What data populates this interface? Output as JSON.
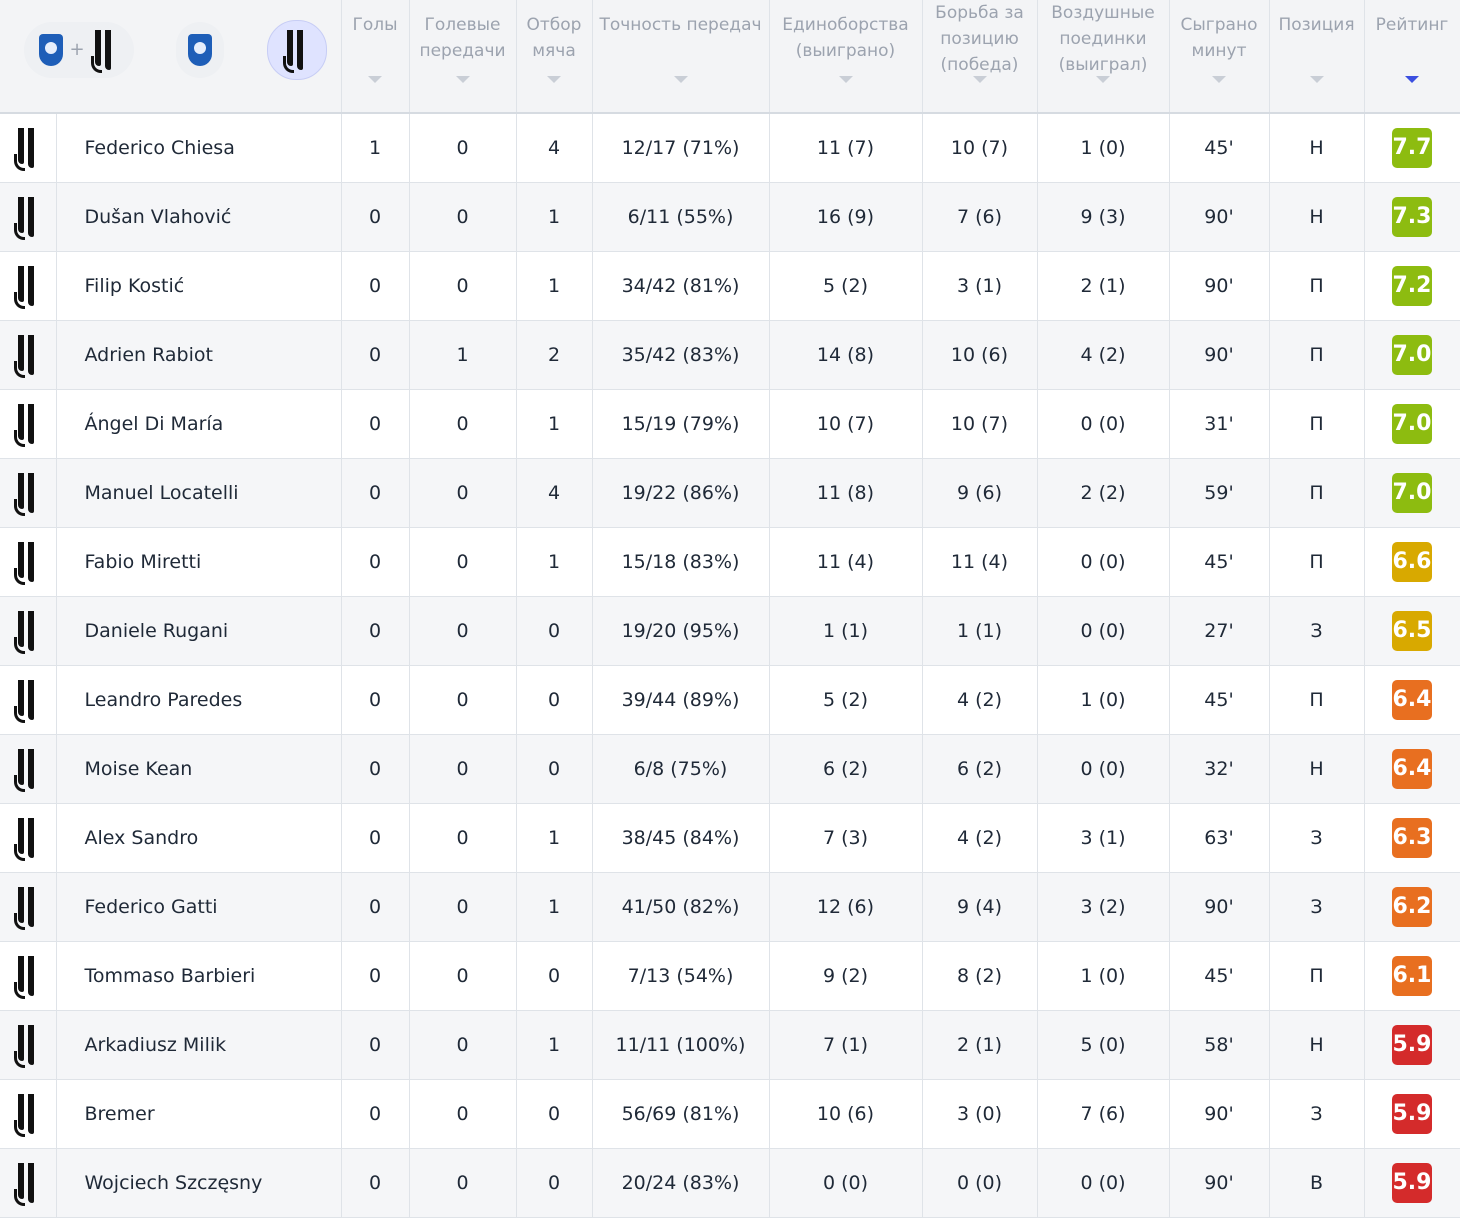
{
  "header": {
    "team_selector": {
      "combined_icons": [
        "empoli-crest-icon",
        "juventus-crest-icon"
      ],
      "plus": "+",
      "home_icon": "empoli-crest-icon",
      "away_icon": "juventus-crest-icon",
      "selected": "away"
    },
    "columns": [
      {
        "key": "goals",
        "label": "Голы"
      },
      {
        "key": "assists",
        "label": "Голевые передачи"
      },
      {
        "key": "tackles",
        "label": "Отбор мяча"
      },
      {
        "key": "pass_accuracy",
        "label": "Точность передач"
      },
      {
        "key": "duels",
        "label": "Единоборства (выиграно)"
      },
      {
        "key": "ground_duels",
        "label": "Борьба за позицию (победа)"
      },
      {
        "key": "aerial_duels",
        "label": "Воздушные поединки (выиграл)"
      },
      {
        "key": "minutes",
        "label": "Сыграно минут"
      },
      {
        "key": "position",
        "label": "Позиция"
      },
      {
        "key": "rating",
        "label": "Рейтинг"
      }
    ],
    "sorted_by": "rating",
    "colors": {
      "sort_active": "#3b4fe0",
      "sort_inactive": "#c9ced6"
    }
  },
  "rating_colors": {
    "green": "#8dbc10",
    "yellow": "#d8a900",
    "orange": "#e86f20",
    "red": "#d42b2b"
  },
  "players": [
    {
      "team_icon": "juventus-crest-icon",
      "name": "Federico Chiesa",
      "goals": "1",
      "assists": "0",
      "tackles": "4",
      "pass_accuracy": "12/17 (71%)",
      "duels": "11 (7)",
      "ground_duels": "10 (7)",
      "aerial_duels": "1 (0)",
      "minutes": "45'",
      "position": "Н",
      "rating": "7.7",
      "rating_color": "green"
    },
    {
      "team_icon": "juventus-crest-icon",
      "name": "Dušan Vlahović",
      "goals": "0",
      "assists": "0",
      "tackles": "1",
      "pass_accuracy": "6/11 (55%)",
      "duels": "16 (9)",
      "ground_duels": "7 (6)",
      "aerial_duels": "9 (3)",
      "minutes": "90'",
      "position": "Н",
      "rating": "7.3",
      "rating_color": "green"
    },
    {
      "team_icon": "juventus-crest-icon",
      "name": "Filip Kostić",
      "goals": "0",
      "assists": "0",
      "tackles": "1",
      "pass_accuracy": "34/42 (81%)",
      "duels": "5 (2)",
      "ground_duels": "3 (1)",
      "aerial_duels": "2 (1)",
      "minutes": "90'",
      "position": "П",
      "rating": "7.2",
      "rating_color": "green"
    },
    {
      "team_icon": "juventus-crest-icon",
      "name": "Adrien Rabiot",
      "goals": "0",
      "assists": "1",
      "tackles": "2",
      "pass_accuracy": "35/42 (83%)",
      "duels": "14 (8)",
      "ground_duels": "10 (6)",
      "aerial_duels": "4 (2)",
      "minutes": "90'",
      "position": "П",
      "rating": "7.0",
      "rating_color": "green"
    },
    {
      "team_icon": "juventus-crest-icon",
      "name": "Ángel Di María",
      "goals": "0",
      "assists": "0",
      "tackles": "1",
      "pass_accuracy": "15/19 (79%)",
      "duels": "10 (7)",
      "ground_duels": "10 (7)",
      "aerial_duels": "0 (0)",
      "minutes": "31'",
      "position": "П",
      "rating": "7.0",
      "rating_color": "green"
    },
    {
      "team_icon": "juventus-crest-icon",
      "name": "Manuel Locatelli",
      "goals": "0",
      "assists": "0",
      "tackles": "4",
      "pass_accuracy": "19/22 (86%)",
      "duels": "11 (8)",
      "ground_duels": "9 (6)",
      "aerial_duels": "2 (2)",
      "minutes": "59'",
      "position": "П",
      "rating": "7.0",
      "rating_color": "green"
    },
    {
      "team_icon": "juventus-crest-icon",
      "name": "Fabio Miretti",
      "goals": "0",
      "assists": "0",
      "tackles": "1",
      "pass_accuracy": "15/18 (83%)",
      "duels": "11 (4)",
      "ground_duels": "11 (4)",
      "aerial_duels": "0 (0)",
      "minutes": "45'",
      "position": "П",
      "rating": "6.6",
      "rating_color": "yellow"
    },
    {
      "team_icon": "juventus-crest-icon",
      "name": "Daniele Rugani",
      "goals": "0",
      "assists": "0",
      "tackles": "0",
      "pass_accuracy": "19/20 (95%)",
      "duels": "1 (1)",
      "ground_duels": "1 (1)",
      "aerial_duels": "0 (0)",
      "minutes": "27'",
      "position": "З",
      "rating": "6.5",
      "rating_color": "yellow"
    },
    {
      "team_icon": "juventus-crest-icon",
      "name": "Leandro Paredes",
      "goals": "0",
      "assists": "0",
      "tackles": "0",
      "pass_accuracy": "39/44 (89%)",
      "duels": "5 (2)",
      "ground_duels": "4 (2)",
      "aerial_duels": "1 (0)",
      "minutes": "45'",
      "position": "П",
      "rating": "6.4",
      "rating_color": "orange"
    },
    {
      "team_icon": "juventus-crest-icon",
      "name": "Moise Kean",
      "goals": "0",
      "assists": "0",
      "tackles": "0",
      "pass_accuracy": "6/8 (75%)",
      "duels": "6 (2)",
      "ground_duels": "6 (2)",
      "aerial_duels": "0 (0)",
      "minutes": "32'",
      "position": "Н",
      "rating": "6.4",
      "rating_color": "orange"
    },
    {
      "team_icon": "juventus-crest-icon",
      "name": "Alex Sandro",
      "goals": "0",
      "assists": "0",
      "tackles": "1",
      "pass_accuracy": "38/45 (84%)",
      "duels": "7 (3)",
      "ground_duels": "4 (2)",
      "aerial_duels": "3 (1)",
      "minutes": "63'",
      "position": "З",
      "rating": "6.3",
      "rating_color": "orange"
    },
    {
      "team_icon": "juventus-crest-icon",
      "name": "Federico Gatti",
      "goals": "0",
      "assists": "0",
      "tackles": "1",
      "pass_accuracy": "41/50 (82%)",
      "duels": "12 (6)",
      "ground_duels": "9 (4)",
      "aerial_duels": "3 (2)",
      "minutes": "90'",
      "position": "З",
      "rating": "6.2",
      "rating_color": "orange"
    },
    {
      "team_icon": "juventus-crest-icon",
      "name": "Tommaso Barbieri",
      "goals": "0",
      "assists": "0",
      "tackles": "0",
      "pass_accuracy": "7/13 (54%)",
      "duels": "9 (2)",
      "ground_duels": "8 (2)",
      "aerial_duels": "1 (0)",
      "minutes": "45'",
      "position": "П",
      "rating": "6.1",
      "rating_color": "orange"
    },
    {
      "team_icon": "juventus-crest-icon",
      "name": "Arkadiusz Milik",
      "goals": "0",
      "assists": "0",
      "tackles": "1",
      "pass_accuracy": "11/11 (100%)",
      "duels": "7 (1)",
      "ground_duels": "2 (1)",
      "aerial_duels": "5 (0)",
      "minutes": "58'",
      "position": "Н",
      "rating": "5.9",
      "rating_color": "red"
    },
    {
      "team_icon": "juventus-crest-icon",
      "name": "Bremer",
      "goals": "0",
      "assists": "0",
      "tackles": "0",
      "pass_accuracy": "56/69 (81%)",
      "duels": "10 (6)",
      "ground_duels": "3 (0)",
      "aerial_duels": "7 (6)",
      "minutes": "90'",
      "position": "З",
      "rating": "5.9",
      "rating_color": "red"
    },
    {
      "team_icon": "juventus-crest-icon",
      "name": "Wojciech Szczęsny",
      "goals": "0",
      "assists": "0",
      "tackles": "0",
      "pass_accuracy": "20/24 (83%)",
      "duels": "0 (0)",
      "ground_duels": "0 (0)",
      "aerial_duels": "0 (0)",
      "minutes": "90'",
      "position": "В",
      "rating": "5.9",
      "rating_color": "red"
    }
  ]
}
